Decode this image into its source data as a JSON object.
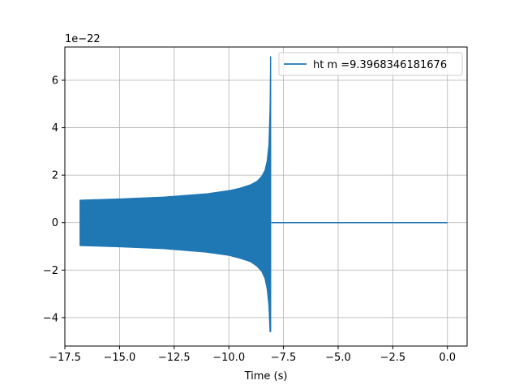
{
  "chart_data": {
    "type": "line",
    "xlabel": "Time (s)",
    "ylabel": "",
    "y_offset_text": "1e−22",
    "y_scale_factor": 1e-22,
    "xlim": [
      -17.5,
      0.9
    ],
    "ylim": [
      -5.2,
      7.4
    ],
    "x_ticks": [
      -17.5,
      -15.0,
      -12.5,
      -10.0,
      -7.5,
      -5.0,
      -2.5,
      0.0
    ],
    "x_tick_labels": [
      "−17.5",
      "−15.0",
      "−12.5",
      "−10.0",
      "−7.5",
      "−5.0",
      "−2.5",
      "0.0"
    ],
    "y_ticks": [
      -4,
      -2,
      0,
      2,
      4,
      6
    ],
    "y_tick_labels": [
      "−4",
      "−2",
      "0",
      "2",
      "4",
      "6"
    ],
    "grid": true,
    "legend_position": "top-right",
    "series": [
      {
        "name": "ht m =9.3968346181676",
        "color": "#1f77b4",
        "upper_envelope": {
          "x": [
            -16.8,
            -15.0,
            -13.0,
            -11.0,
            -10.0,
            -9.5,
            -9.0,
            -8.7,
            -8.5,
            -8.35,
            -8.25,
            -8.17,
            -8.12,
            -8.09
          ],
          "y": [
            0.95,
            1.0,
            1.08,
            1.22,
            1.35,
            1.45,
            1.6,
            1.75,
            1.95,
            2.2,
            2.6,
            3.3,
            4.8,
            7.0
          ]
        },
        "lower_envelope": {
          "x": [
            -16.8,
            -15.0,
            -13.0,
            -11.0,
            -10.0,
            -9.5,
            -9.0,
            -8.7,
            -8.5,
            -8.35,
            -8.25,
            -8.17,
            -8.12,
            -8.09
          ],
          "y": [
            -0.97,
            -1.02,
            -1.1,
            -1.25,
            -1.38,
            -1.5,
            -1.65,
            -1.85,
            -2.05,
            -2.35,
            -2.8,
            -3.5,
            -4.6,
            -4.6
          ]
        },
        "post_merger": {
          "x": [
            -8.05,
            0.0
          ],
          "y": [
            0,
            0
          ]
        }
      }
    ]
  }
}
